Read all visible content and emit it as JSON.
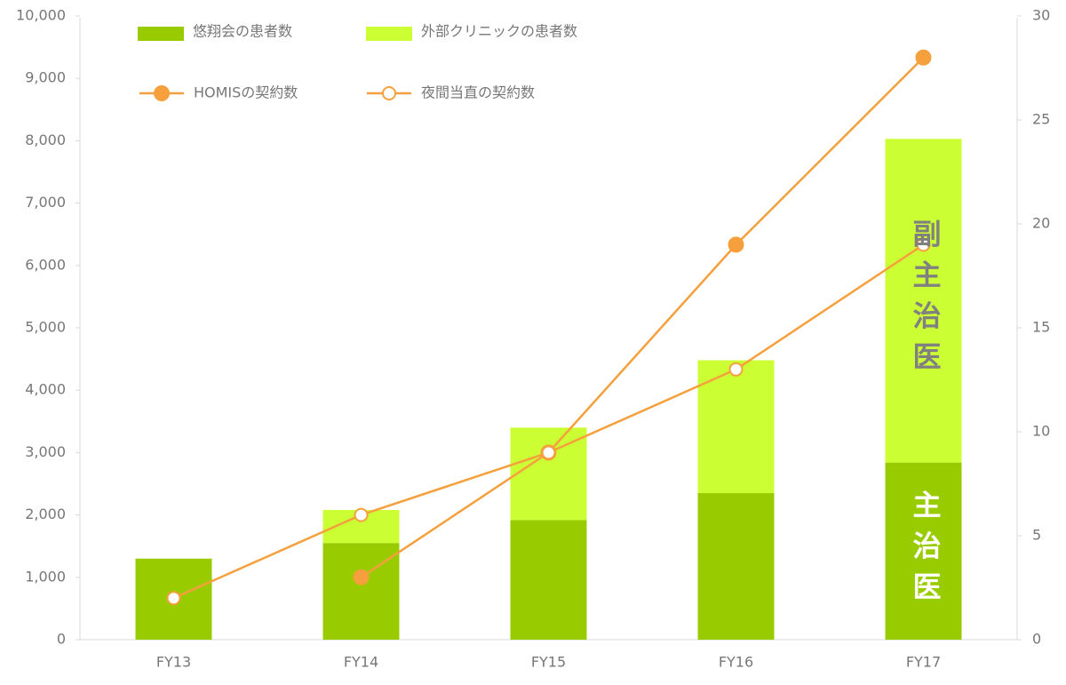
{
  "chart_data": {
    "type": "bar",
    "stacked": true,
    "categories": [
      "FY13",
      "FY14",
      "FY15",
      "FY16",
      "FY17"
    ],
    "series": [
      {
        "name": "悠翔会の患者数",
        "color": "#99cc00",
        "values": [
          1300,
          1550,
          1920,
          2350,
          2840
        ]
      },
      {
        "name": "外部クリニックの患者数",
        "color": "#ccff33",
        "values": [
          0,
          530,
          1480,
          2130,
          5190
        ]
      },
      {
        "name": "HOMISの契約数",
        "type": "line",
        "axis": "y2",
        "marker": "filled",
        "color": "#f5a03c",
        "values": [
          null,
          3,
          9,
          19,
          28
        ]
      },
      {
        "name": "夜間当直の契約数",
        "type": "line",
        "axis": "y2",
        "marker": "open",
        "color": "#f5a03c",
        "values": [
          2,
          6,
          9,
          13,
          19
        ]
      }
    ],
    "ylim": [
      0,
      10000
    ],
    "yticks": [
      0,
      {
        "value": 1000,
        "label": "1,000"
      },
      {
        "value": 2000,
        "label": "2,000"
      },
      {
        "value": 3000,
        "label": "3,000"
      },
      {
        "value": 4000,
        "label": "4,000"
      },
      {
        "value": 5000,
        "label": "5,000"
      },
      {
        "value": 6000,
        "label": "6,000"
      },
      {
        "value": 7000,
        "label": "7,000"
      },
      {
        "value": 8000,
        "label": "8,000"
      },
      {
        "value": 9000,
        "label": "9,000"
      },
      {
        "value": 10000,
        "label": "10,000"
      }
    ],
    "y2lim": [
      0,
      30
    ],
    "y2ticks": [
      0,
      5,
      10,
      15,
      20,
      25,
      30
    ],
    "annotations": [
      {
        "text": "副主治医",
        "series": 1,
        "category": 4,
        "color": "#808080"
      },
      {
        "text": "主治医",
        "series": 0,
        "category": 4,
        "color": "#ffffff"
      }
    ],
    "legend": "top"
  }
}
